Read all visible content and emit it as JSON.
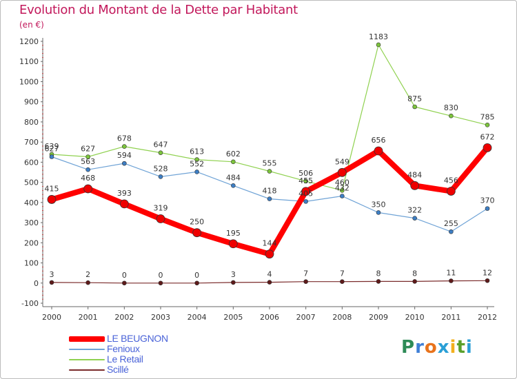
{
  "header": {
    "title": "Evolution du Montant de la Dette par Habitant",
    "unit": "(en €)"
  },
  "logo": {
    "text": "Proxiti",
    "letters": [
      {
        "ch": "P",
        "color": "#2e8b57"
      },
      {
        "ch": "r",
        "color": "#3f7fd6"
      },
      {
        "ch": "o",
        "color": "#e8731c"
      },
      {
        "ch": "x",
        "color": "#2a9fd6"
      },
      {
        "ch": "i",
        "color": "#f2b01e"
      },
      {
        "ch": "t",
        "color": "#5aa02c"
      },
      {
        "ch": "i",
        "color": "#2a9fd6"
      }
    ]
  },
  "chart_data": {
    "type": "line",
    "title": "Evolution du Montant de la Dette par Habitant",
    "ylabel": "(en €)",
    "xlabel": "",
    "x": [
      "2000",
      "2001",
      "2002",
      "2003",
      "2004",
      "2005",
      "2006",
      "2007",
      "2008",
      "2009",
      "2010",
      "2011",
      "2012"
    ],
    "ylim": [
      -100,
      1200
    ],
    "yticks": [
      -100,
      0,
      100,
      200,
      300,
      400,
      500,
      600,
      700,
      800,
      900,
      1000,
      1100,
      1200
    ],
    "grid": false,
    "legend_position": "bottom-left",
    "series": [
      {
        "name": "Le Retail",
        "color": "#8fd14f",
        "marker_color": "#7cc43c",
        "width": 1.2,
        "radius": 3,
        "values": [
          639,
          627,
          678,
          647,
          613,
          602,
          555,
          506,
          460,
          1183,
          875,
          830,
          785
        ]
      },
      {
        "name": "Fenioux",
        "color": "#6fa3d6",
        "marker_color": "#3d7ec4",
        "width": 1.2,
        "radius": 3,
        "values": [
          627,
          563,
          594,
          528,
          552,
          484,
          418,
          405,
          432,
          350,
          322,
          255,
          370
        ]
      },
      {
        "name": "Scillé",
        "color": "#7a2a2a",
        "marker_color": "#5e1a1a",
        "width": 1.2,
        "radius": 3,
        "values": [
          3,
          2,
          0,
          0,
          0,
          3,
          4,
          7,
          7,
          8,
          8,
          11,
          12
        ]
      },
      {
        "name": "LE BEUGNON",
        "color": "#ff0000",
        "marker_color": "#ee0000",
        "width": 8,
        "radius": 6,
        "values": [
          415,
          468,
          393,
          319,
          250,
          195,
          144,
          455,
          549,
          656,
          484,
          456,
          672
        ]
      }
    ],
    "legend_order": [
      "LE BEUGNON",
      "Fenioux",
      "Le Retail",
      "Scillé"
    ]
  }
}
